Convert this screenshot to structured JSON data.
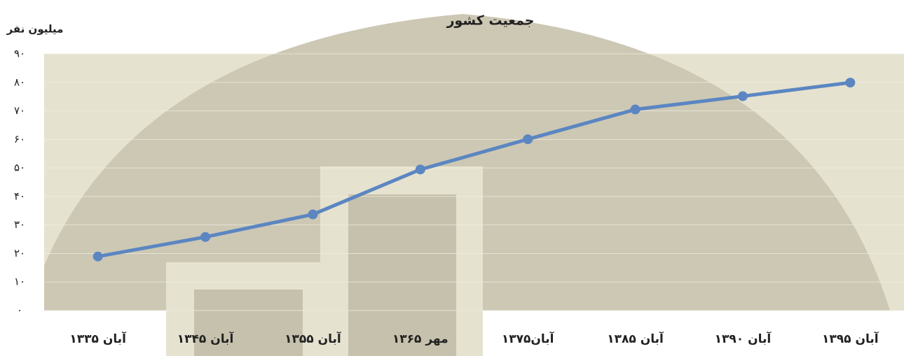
{
  "chart_data": {
    "type": "line",
    "title": "جمعیت کشور",
    "y_label": "میلیون نفر",
    "categories": [
      "آبان ۱۳۳۵",
      "آبان ۱۳۴۵",
      "آبان ۱۳۵۵",
      "مهر ۱۳۶۵",
      "آبان۱۳۷۵",
      "آبان ۱۳۸۵",
      "آبان ۱۳۹۰",
      "آبان ۱۳۹۵"
    ],
    "values": [
      18.95,
      25.79,
      33.71,
      49.45,
      60.06,
      70.5,
      75.15,
      79.93
    ],
    "color": "#5b86c2",
    "ylim": [
      0,
      90
    ],
    "yticks": [
      {
        "value": 0,
        "label": "۰"
      },
      {
        "value": 10,
        "label": "۱۰"
      },
      {
        "value": 20,
        "label": "۲۰"
      },
      {
        "value": 30,
        "label": "۳۰"
      },
      {
        "value": 40,
        "label": "۴۰"
      },
      {
        "value": 50,
        "label": "۵۰"
      },
      {
        "value": 60,
        "label": "۶۰"
      },
      {
        "value": 70,
        "label": "۷۰"
      },
      {
        "value": 80,
        "label": "۸۰"
      },
      {
        "value": 90,
        "label": "۹۰"
      }
    ],
    "grid": true
  }
}
